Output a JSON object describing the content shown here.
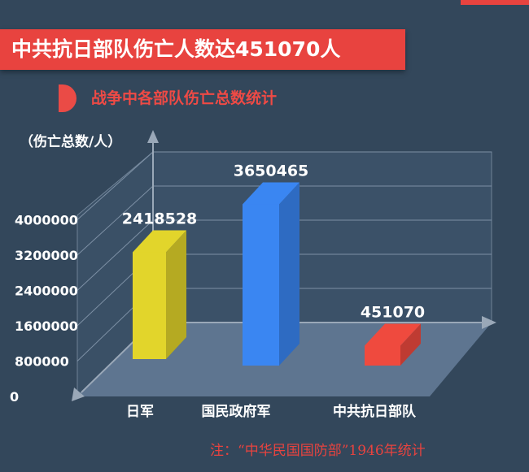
{
  "title": "中共抗日部队伤亡人数达451070人",
  "subtitle": "战争中各部队伤亡总数统计",
  "source_note": "注：“中华民国国防部”1946年统计",
  "colors": {
    "background": "#33475b",
    "accent": "#e8433f",
    "japan_bar": "#e2d52b",
    "kmt_bar": "#3a86f2",
    "ccp_bar": "#ef4a3e"
  },
  "chart_data": {
    "type": "bar",
    "title": "",
    "ylabel": "（伤亡总数/人）",
    "xlabel": "",
    "categories": [
      "日军",
      "国民政府军",
      "中共抗日部队"
    ],
    "values": [
      2418528,
      3650465,
      451070
    ],
    "data_labels": [
      "2418528",
      "3650465",
      "451070"
    ],
    "y_ticks": [
      0,
      800000,
      1600000,
      2400000,
      3200000,
      4000000
    ],
    "y_tick_labels": [
      "0",
      "800000",
      "1600000",
      "2400000",
      "3200000",
      "4000000"
    ],
    "ylim": [
      0,
      4000000
    ],
    "grid": true,
    "style": "3d"
  }
}
